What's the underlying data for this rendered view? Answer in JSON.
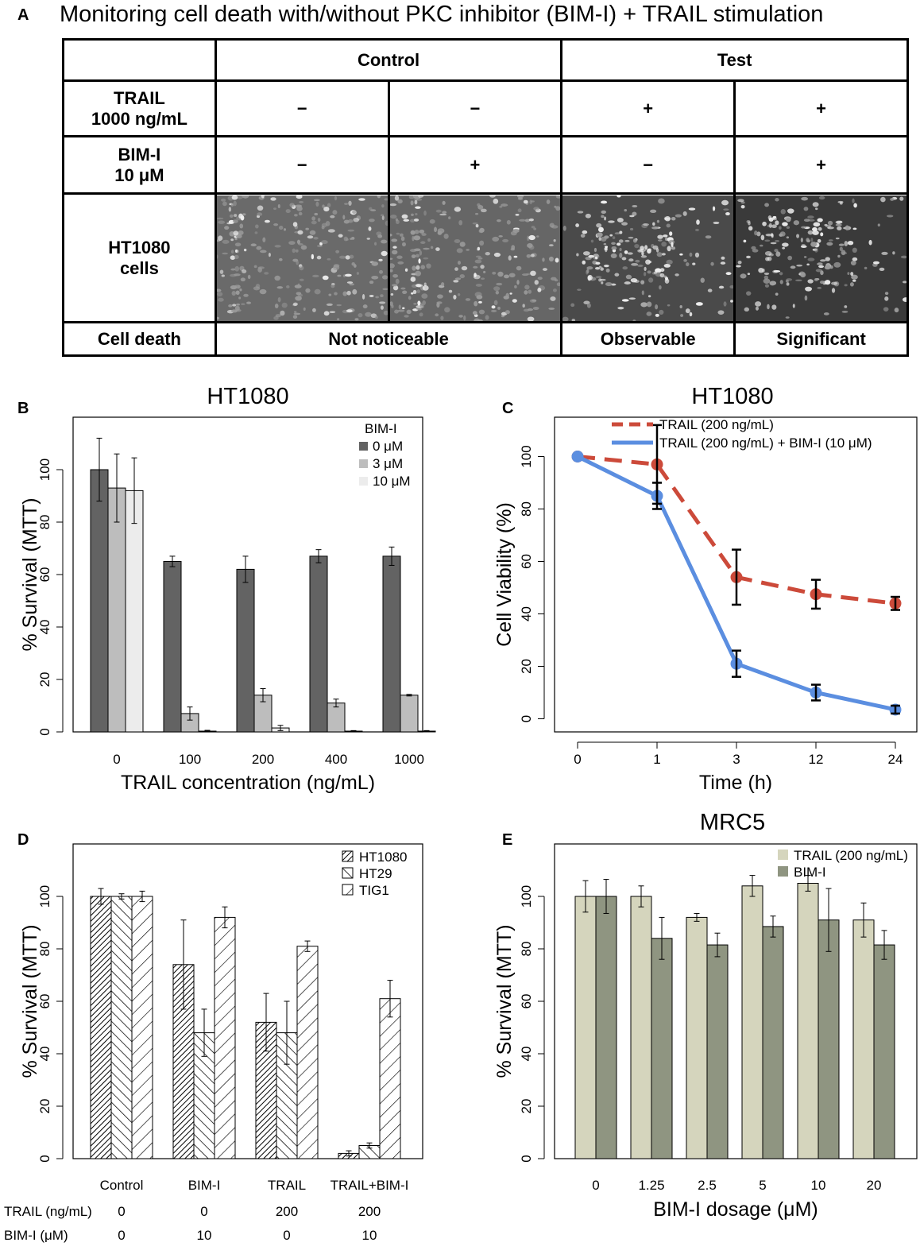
{
  "panelA": {
    "letter": "A",
    "title": "Monitoring cell death with/without PKC inhibitor (BIM-I) + TRAIL stimulation",
    "group_control": "Control",
    "group_test": "Test",
    "row_trail": [
      "TRAIL",
      "1000 ng/mL"
    ],
    "row_bim": [
      "BIM-I",
      "10 μM"
    ],
    "row_cells": [
      "HT1080",
      "cells"
    ],
    "row_death": "Cell death",
    "trail_values": [
      "−",
      "−",
      "+",
      "+"
    ],
    "bim_values": [
      "−",
      "+",
      "−",
      "+"
    ],
    "death_values": [
      "Not noticeable",
      "Observable",
      "Significant"
    ]
  },
  "chart_data": [
    {
      "panel": "B",
      "type": "bar",
      "title": "HT1080",
      "xlabel": "TRAIL concentration (ng/mL)",
      "ylabel": "% Survival (MTT)",
      "ylim": [
        0,
        120
      ],
      "yticks": [
        0,
        20,
        40,
        60,
        80,
        100
      ],
      "categories": [
        "0",
        "100",
        "200",
        "400",
        "1000"
      ],
      "legend_title": "BIM-I",
      "legend_position": "top-right",
      "series": [
        {
          "name": "0 μM",
          "color": "#636363",
          "values": [
            100,
            65,
            62,
            67,
            67
          ],
          "errors": [
            12,
            2,
            5,
            2.5,
            3.5
          ]
        },
        {
          "name": "3 μM",
          "color": "#bdbdbd",
          "values": [
            93,
            7,
            14,
            11,
            14
          ],
          "errors": [
            13,
            2.5,
            2.5,
            1.5,
            0.3
          ]
        },
        {
          "name": "10 μM",
          "color": "#ececec",
          "values": [
            92,
            0.3,
            1.5,
            0.3,
            0.3
          ],
          "errors": [
            12.5,
            0.3,
            1,
            0.2,
            0.2
          ]
        }
      ]
    },
    {
      "panel": "C",
      "type": "line",
      "title": "HT1080",
      "xlabel": "Time (h)",
      "ylabel": "Cell Viability (%)",
      "ylim": [
        -5,
        115
      ],
      "yticks": [
        0,
        20,
        40,
        60,
        80,
        100
      ],
      "x": [
        "0",
        "1",
        "3",
        "12",
        "24"
      ],
      "legend_position": "top-right",
      "series": [
        {
          "name": "TRAIL (200 ng/mL)",
          "color": "#cc4a3a",
          "style": "dashed",
          "values": [
            100,
            97,
            54,
            47.5,
            44
          ],
          "errors": [
            0,
            15,
            10.5,
            5.5,
            2.5
          ]
        },
        {
          "name": "TRAIL (200 ng/mL) + BIM-I (10 μM)",
          "color": "#5b8ee0",
          "style": "solid",
          "values": [
            100,
            85,
            21,
            10,
            3.5
          ],
          "errors": [
            0,
            5,
            5,
            3,
            1.5
          ]
        }
      ]
    },
    {
      "panel": "D",
      "type": "bar",
      "title": "",
      "xlabel": "",
      "ylabel": "% Survival (MTT)",
      "ylim": [
        0,
        120
      ],
      "yticks": [
        0,
        20,
        40,
        60,
        80,
        100
      ],
      "categories": [
        "Control",
        "BIM-I",
        "TRAIL",
        "TRAIL+BIM-I"
      ],
      "condition_rows": [
        {
          "label": "TRAIL (ng/mL)",
          "values": [
            "0",
            "0",
            "200",
            "200"
          ]
        },
        {
          "label": "BIM-I (μM)",
          "values": [
            "0",
            "10",
            "0",
            "10"
          ]
        }
      ],
      "legend_position": "top-right",
      "series": [
        {
          "name": "HT1080",
          "pattern": "dense-diagonal",
          "values": [
            100,
            74,
            52,
            2
          ],
          "errors": [
            3,
            17,
            11,
            1
          ]
        },
        {
          "name": "HT29",
          "pattern": "back-diagonal",
          "values": [
            100,
            48,
            48,
            5
          ],
          "errors": [
            1,
            9,
            12,
            1
          ]
        },
        {
          "name": "TIG1",
          "pattern": "sparse-diagonal",
          "values": [
            100,
            92,
            81,
            61
          ],
          "errors": [
            2,
            4,
            2,
            7
          ]
        }
      ]
    },
    {
      "panel": "E",
      "type": "bar",
      "title": "MRC5",
      "xlabel": "BIM-I dosage (μM)",
      "ylabel": "% Survival (MTT)",
      "ylim": [
        0,
        120
      ],
      "yticks": [
        0,
        20,
        40,
        60,
        80,
        100
      ],
      "categories": [
        "0",
        "1.25",
        "2.5",
        "5",
        "10",
        "20"
      ],
      "legend_position": "top-right",
      "series": [
        {
          "name": "TRAIL (200 ng/mL)",
          "color": "#d5d5bd",
          "values": [
            100,
            100,
            92,
            104,
            105,
            91
          ],
          "errors": [
            6,
            4,
            1.5,
            4,
            3,
            6.5
          ]
        },
        {
          "name": "BIM-I",
          "color": "#8f9581",
          "values": [
            100,
            84,
            81.5,
            88.5,
            91,
            81.5
          ],
          "errors": [
            6.5,
            8,
            4.5,
            4,
            12,
            5.5
          ]
        }
      ]
    }
  ]
}
